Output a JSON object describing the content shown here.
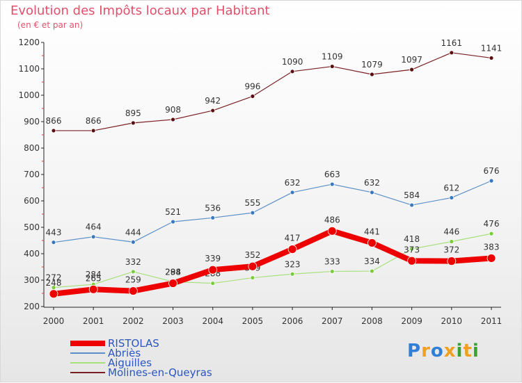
{
  "title": "Evolution des Impôts locaux par Habitant",
  "subtitle": "(en € et par an)",
  "logo_text": "Proxiti",
  "chart_data": {
    "type": "line",
    "title": "Evolution des Impôts locaux par Habitant",
    "subtitle": "(en € et par an)",
    "categories": [
      "2000",
      "2001",
      "2002",
      "2003",
      "2004",
      "2005",
      "2006",
      "2007",
      "2008",
      "2009",
      "2010",
      "2011"
    ],
    "ylim": [
      200,
      1200
    ],
    "yticks": [
      200,
      300,
      400,
      500,
      600,
      700,
      800,
      900,
      1000,
      1100,
      1200
    ],
    "grid": false,
    "legend_position": "bottom-left",
    "series": [
      {
        "name": "Molines-en-Queyras",
        "color": "#7a1f22",
        "marker": "#5a0f12",
        "values": [
          866,
          866,
          895,
          908,
          942,
          996,
          1090,
          1109,
          1079,
          1097,
          1161,
          1141
        ]
      },
      {
        "name": "Abriès",
        "color": "#5a8fc8",
        "marker": "#3a78c0",
        "values": [
          443,
          464,
          444,
          521,
          536,
          555,
          632,
          663,
          632,
          584,
          612,
          676
        ]
      },
      {
        "name": "Aiguilles",
        "color": "#a8e07c",
        "marker": "#7acc3a",
        "values": [
          272,
          284,
          332,
          294,
          288,
          309,
          323,
          333,
          334,
          418,
          446,
          476
        ]
      },
      {
        "name": "RISTOLAS",
        "color": "#ee0000",
        "marker": "#ee0000",
        "values": [
          248,
          265,
          259,
          288,
          339,
          352,
          417,
          486,
          441,
          373,
          372,
          383
        ]
      }
    ],
    "legend_order": [
      "RISTOLAS",
      "Abriès",
      "Aiguilles",
      "Molines-en-Queyras"
    ]
  }
}
